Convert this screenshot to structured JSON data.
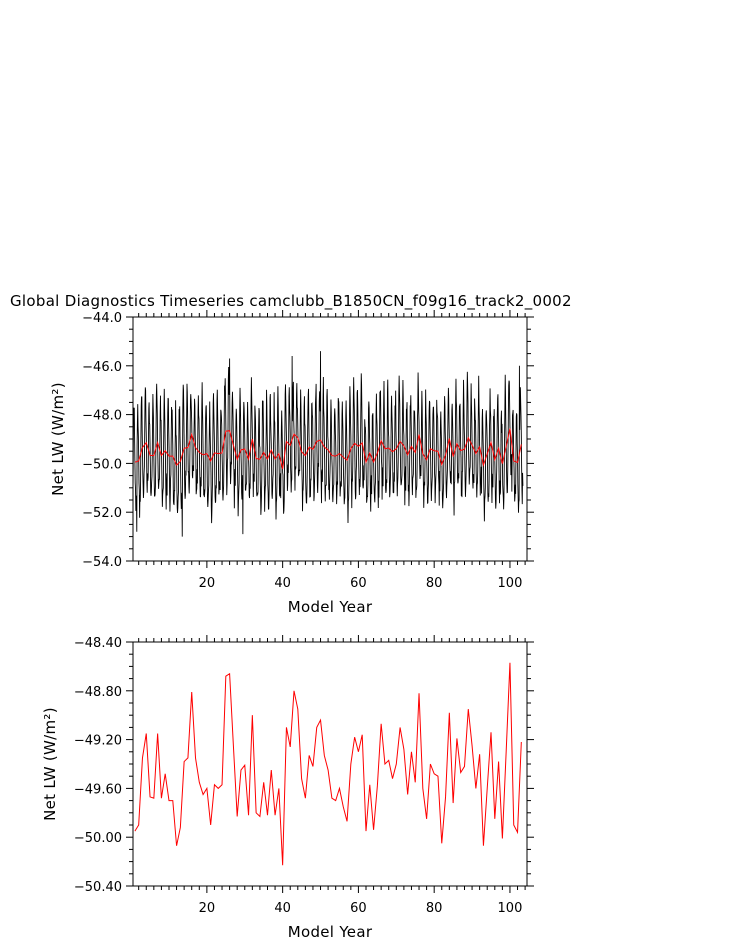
{
  "title": "Global Diagnostics Timeseries camclubb_B1850CN_f09g16_track2_0002",
  "chart_data": [
    {
      "type": "line",
      "xlabel": "Model Year",
      "ylabel": "Net LW (W/m²)",
      "xlim": [
        0.5,
        104.5
      ],
      "ylim": [
        -54.0,
        -44.0
      ],
      "xticks": [
        20,
        40,
        60,
        80,
        100
      ],
      "xtick_labels": [
        "20",
        "40",
        "60",
        "80",
        "100"
      ],
      "yticks": [
        -54.0,
        -52.0,
        -50.0,
        -48.0,
        -46.0,
        -44.0
      ],
      "ytick_labels": [
        "−54.0",
        "−52.0",
        "−50.0",
        "−48.0",
        "−46.0",
        "−44.0"
      ],
      "grid": false,
      "series": [
        {
          "color": "#000000",
          "description": "monthly values, annual cycle amplitude ~±2 W/m², range about -53.0 to -45.4",
          "x_start": 0.5,
          "x_step": 0.0833333,
          "annual_mean_ref": "annual means",
          "monthly_cycle": [
            -1.0,
            0.3,
            1.6,
            2.1,
            1.7,
            1.0,
            0.2,
            -0.6,
            -1.4,
            -1.8,
            -1.5,
            -1.2
          ],
          "notable_extremes": [
            {
              "x": 13.5,
              "y": -53.0
            },
            {
              "x": 29.5,
              "y": -52.9
            },
            {
              "x": 50.0,
              "y": -45.4
            },
            {
              "x": 42.5,
              "y": -45.6
            },
            {
              "x": 26.0,
              "y": -45.7
            },
            {
              "x": 102.5,
              "y": -46.0
            },
            {
              "x": 1.5,
              "y": -52.8
            }
          ]
        },
        {
          "color": "#ff0000",
          "description": "annual mean",
          "x_start": 1,
          "values": [
            -49.95,
            -49.9,
            -49.35,
            -49.15,
            -49.67,
            -49.68,
            -49.15,
            -49.68,
            -49.48,
            -49.7,
            -49.7,
            -50.07,
            -49.92,
            -49.38,
            -49.35,
            -48.81,
            -49.35,
            -49.55,
            -49.65,
            -49.6,
            -49.9,
            -49.57,
            -49.6,
            -49.57,
            -48.68,
            -48.66,
            -49.25,
            -49.83,
            -49.45,
            -49.41,
            -49.82,
            -49.0,
            -49.8,
            -49.83,
            -49.55,
            -49.82,
            -49.45,
            -49.82,
            -49.6,
            -50.23,
            -49.1,
            -49.26,
            -48.8,
            -48.95,
            -49.52,
            -49.68,
            -49.33,
            -49.42,
            -49.1,
            -49.04,
            -49.33,
            -49.45,
            -49.68,
            -49.7,
            -49.6,
            -49.75,
            -49.87,
            -49.4,
            -49.18,
            -49.3,
            -49.16,
            -49.95,
            -49.57,
            -49.94,
            -49.58,
            -49.07,
            -49.4,
            -49.37,
            -49.52,
            -49.4,
            -49.1,
            -49.28,
            -49.65,
            -49.3,
            -49.55,
            -48.82,
            -49.6,
            -49.85,
            -49.4,
            -49.48,
            -49.5,
            -50.05,
            -49.67,
            -48.98,
            -49.72,
            -49.19,
            -49.47,
            -49.42,
            -48.95,
            -49.25,
            -49.6,
            -49.32,
            -50.07,
            -49.6,
            -49.14,
            -49.85,
            -49.38,
            -50.01,
            -49.3,
            -48.57,
            -49.9,
            -49.96,
            -49.22
          ]
        }
      ]
    },
    {
      "type": "line",
      "xlabel": "Model Year",
      "ylabel": "Net LW (W/m²)",
      "xlim": [
        0.5,
        104.5
      ],
      "ylim": [
        -50.4,
        -48.4
      ],
      "xticks": [
        20,
        40,
        60,
        80,
        100
      ],
      "xtick_labels": [
        "20",
        "40",
        "60",
        "80",
        "100"
      ],
      "yticks": [
        -50.4,
        -50.0,
        -49.6,
        -49.2,
        -48.8,
        -48.4
      ],
      "ytick_labels": [
        "−50.40",
        "−50.00",
        "−49.60",
        "−49.20",
        "−48.80",
        "−48.40"
      ],
      "grid": false,
      "series": [
        {
          "color": "#ff0000",
          "description": "annual mean",
          "x_start": 1,
          "values": [
            -49.95,
            -49.9,
            -49.35,
            -49.15,
            -49.67,
            -49.68,
            -49.15,
            -49.68,
            -49.48,
            -49.7,
            -49.7,
            -50.07,
            -49.92,
            -49.38,
            -49.35,
            -48.81,
            -49.35,
            -49.55,
            -49.65,
            -49.6,
            -49.9,
            -49.57,
            -49.6,
            -49.57,
            -48.68,
            -48.66,
            -49.25,
            -49.83,
            -49.45,
            -49.41,
            -49.82,
            -49.0,
            -49.8,
            -49.83,
            -49.55,
            -49.82,
            -49.45,
            -49.82,
            -49.6,
            -50.23,
            -49.1,
            -49.26,
            -48.8,
            -48.95,
            -49.52,
            -49.68,
            -49.33,
            -49.42,
            -49.1,
            -49.04,
            -49.33,
            -49.45,
            -49.68,
            -49.7,
            -49.6,
            -49.75,
            -49.87,
            -49.4,
            -49.18,
            -49.3,
            -49.16,
            -49.95,
            -49.57,
            -49.94,
            -49.58,
            -49.07,
            -49.4,
            -49.37,
            -49.52,
            -49.4,
            -49.1,
            -49.28,
            -49.65,
            -49.3,
            -49.55,
            -48.82,
            -49.6,
            -49.85,
            -49.4,
            -49.48,
            -49.5,
            -50.05,
            -49.67,
            -48.98,
            -49.72,
            -49.19,
            -49.47,
            -49.42,
            -48.95,
            -49.25,
            -49.6,
            -49.32,
            -50.07,
            -49.6,
            -49.14,
            -49.85,
            -49.38,
            -50.01,
            -49.3,
            -48.57,
            -49.9,
            -49.96,
            -49.22
          ]
        }
      ]
    }
  ]
}
